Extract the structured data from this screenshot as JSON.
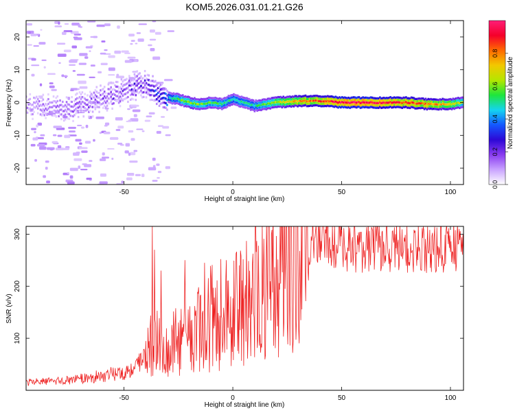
{
  "title": "KOM5.2026.031.01.21.G26",
  "colors": {
    "snr_line": "#ee2222",
    "frame": "#000000",
    "colormap": [
      "#ffffff",
      "#c9a3ff",
      "#8a3cf0",
      "#2d08d6",
      "#1458ff",
      "#14d4f0",
      "#1ee63c",
      "#b4e600",
      "#f2c800",
      "#ff6a00",
      "#f5002a",
      "#ff1e78"
    ]
  },
  "chart_data": [
    {
      "type": "heatmap",
      "xlabel": "Height of straight line (km)",
      "ylabel": "Frequency (Hz)",
      "xlim": [
        -95,
        106
      ],
      "ylim": [
        -25,
        25
      ],
      "xticks": [
        -50,
        0,
        50,
        100
      ],
      "yticks": [
        -20,
        -10,
        0,
        10,
        20
      ],
      "colorbar": {
        "label": "Normalized spectral amplitude",
        "range": [
          0,
          1
        ],
        "ticks": [
          0.0,
          0.2,
          0.4,
          0.6,
          0.8
        ]
      },
      "ridge_center_hz": {
        "x": [
          -85,
          -75,
          -65,
          -55,
          -48,
          -42,
          -38,
          -35,
          -30,
          -25,
          -20,
          -15,
          -10,
          -5,
          0,
          5,
          10,
          15,
          20,
          30,
          40,
          50,
          60,
          70,
          80,
          90,
          100,
          106
        ],
        "y": [
          -1,
          -1.5,
          0,
          2,
          4,
          6,
          5,
          2,
          1.5,
          1,
          0,
          -0.5,
          0,
          -0.5,
          1,
          0,
          -1,
          -0.5,
          0,
          0.5,
          0.5,
          0,
          0,
          0,
          0,
          -0.5,
          -0.5,
          0
        ]
      },
      "ridge_amplitude": {
        "x": [
          -95,
          -60,
          -40,
          -32,
          -28,
          -20,
          -10,
          0,
          10,
          20,
          30,
          40,
          50,
          60,
          70,
          80,
          90,
          100,
          106
        ],
        "y": [
          0.1,
          0.15,
          0.2,
          0.3,
          0.5,
          0.6,
          0.55,
          0.5,
          0.5,
          0.65,
          0.75,
          0.85,
          0.95,
          0.95,
          0.9,
          0.85,
          0.8,
          0.7,
          0.6
        ]
      },
      "grid": false
    },
    {
      "type": "line",
      "xlabel": "Height of straight line (km)",
      "ylabel": "SNR (v/v)",
      "xlim": [
        -95,
        106
      ],
      "ylim": [
        0,
        315
      ],
      "xticks": [
        -50,
        0,
        50,
        100
      ],
      "yticks": [
        100,
        200,
        300
      ],
      "series_trend": {
        "x": [
          -95,
          -80,
          -70,
          -60,
          -50,
          -45,
          -40,
          -38,
          -35,
          -30,
          -25,
          -20,
          -15,
          -10,
          -5,
          0,
          5,
          10,
          15,
          20,
          25,
          30,
          35,
          40,
          45,
          50,
          60,
          70,
          80,
          90,
          100,
          106
        ],
        "y": [
          15,
          18,
          22,
          28,
          35,
          45,
          60,
          100,
          90,
          80,
          95,
          110,
          120,
          140,
          150,
          150,
          170,
          190,
          210,
          230,
          250,
          265,
          275,
          290,
          285,
          275,
          275,
          275,
          275,
          270,
          275,
          280
        ]
      },
      "spikes": {
        "x": [
          -37,
          -36,
          -33,
          -22,
          -13,
          -3,
          3,
          41,
          104
        ],
        "y": [
          315,
          270,
          230,
          250,
          245,
          250,
          240,
          300,
          310
        ]
      },
      "grid": false
    }
  ]
}
